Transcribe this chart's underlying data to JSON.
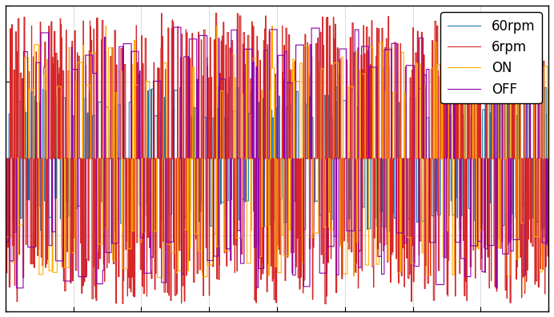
{
  "title": "",
  "xlabel": "",
  "ylabel": "",
  "legend_labels": [
    "60rpm",
    "6rpm",
    "ON",
    "OFF"
  ],
  "colors": [
    "#1f77b4",
    "#d62728",
    "#ffaa00",
    "#8b00aa"
  ],
  "ylim": [
    -1.5,
    1.5
  ],
  "xlim": [
    0,
    1
  ],
  "n_points": 20000,
  "background_color": "#ffffff",
  "linewidth": 0.8,
  "seed": 42,
  "grid_color": "#cccccc",
  "tick_color": "#000000",
  "legend_fontsize": 12,
  "legend_edgecolor": "#000000"
}
